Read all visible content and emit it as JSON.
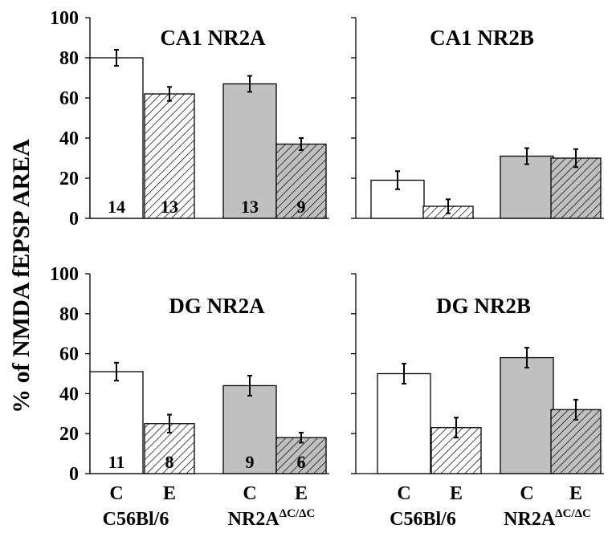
{
  "ylabel": "% of NMDA fEPSP AREA",
  "yticks": [
    "0",
    "20",
    "40",
    "60",
    "80",
    "100"
  ],
  "x_conditions": [
    "C",
    "E",
    "C",
    "E"
  ],
  "groups": [
    {
      "name": "C56Bl/6",
      "sup": ""
    },
    {
      "name": "NR2A",
      "sup": "ΔC/ΔC"
    }
  ],
  "colors": {
    "control_wt": "#ffffff",
    "control_mut": "#c0c0c0",
    "exp_wt": "hatch-white",
    "exp_mut": "hatch-gray",
    "stroke": "#000000"
  },
  "chart_data": [
    {
      "type": "bar",
      "title": "CA1 NR2A",
      "categories": [
        "C56Bl/6 C",
        "C56Bl/6 E",
        "NR2AΔC/ΔC C",
        "NR2AΔC/ΔC E"
      ],
      "values": [
        80,
        62,
        67,
        37
      ],
      "errors": [
        4,
        3.5,
        4,
        3
      ],
      "n_labels": [
        "14",
        "13",
        "13",
        "9"
      ],
      "ylim": [
        0,
        100
      ],
      "ylabel": "% of NMDA fEPSP AREA"
    },
    {
      "type": "bar",
      "title": "CA1 NR2B",
      "categories": [
        "C56Bl/6 C",
        "C56Bl/6 E",
        "NR2AΔC/ΔC C",
        "NR2AΔC/ΔC E"
      ],
      "values": [
        19,
        6,
        31,
        30
      ],
      "errors": [
        4.5,
        3.5,
        4,
        4.5
      ],
      "n_labels": [
        "",
        "",
        "",
        ""
      ],
      "ylim": [
        0,
        100
      ]
    },
    {
      "type": "bar",
      "title": "DG NR2A",
      "categories": [
        "C56Bl/6 C",
        "C56Bl/6 E",
        "NR2AΔC/ΔC C",
        "NR2AΔC/ΔC E"
      ],
      "values": [
        51,
        25,
        44,
        18
      ],
      "errors": [
        4.5,
        4.5,
        5,
        2.5
      ],
      "n_labels": [
        "11",
        "8",
        "9",
        "6"
      ],
      "ylim": [
        0,
        100
      ],
      "ylabel": "% of NMDA fEPSP AREA"
    },
    {
      "type": "bar",
      "title": "DG NR2B",
      "categories": [
        "C56Bl/6 C",
        "C56Bl/6 E",
        "NR2AΔC/ΔC C",
        "NR2AΔC/ΔC E"
      ],
      "values": [
        50,
        23,
        58,
        32
      ],
      "errors": [
        5,
        5,
        5,
        5
      ],
      "n_labels": [
        "",
        "",
        "",
        ""
      ],
      "ylim": [
        0,
        100
      ]
    }
  ]
}
